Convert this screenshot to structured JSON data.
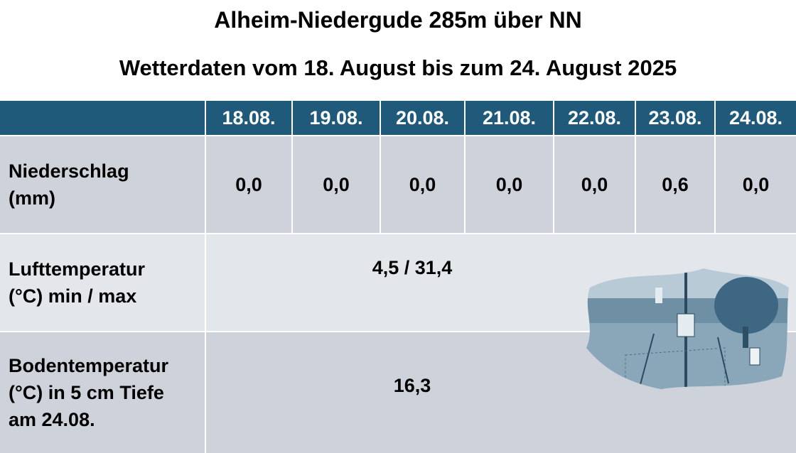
{
  "header": {
    "title": "Alheim-Niedergude 285m über NN",
    "subtitle": "Wetterdaten vom 18. August bis zum 24. August 2025"
  },
  "table": {
    "columns": [
      "18.08.",
      "19.08.",
      "20.08.",
      "21.08.",
      "22.08.",
      "23.08.",
      "24.08."
    ],
    "rows": [
      {
        "label": [
          "Niederschlag",
          "(mm)"
        ],
        "values": [
          "0,0",
          "0,0",
          "0,0",
          "0,0",
          "0,0",
          "0,6",
          "0,0"
        ]
      },
      {
        "label": [
          "Lufttemperatur",
          "(°C) min / max"
        ],
        "value": "4,5 / 31,4"
      },
      {
        "label": [
          "Bodentemperatur",
          "(°C) in 5 cm Tiefe",
          "am 24.08."
        ],
        "value": "16,3"
      }
    ]
  }
}
